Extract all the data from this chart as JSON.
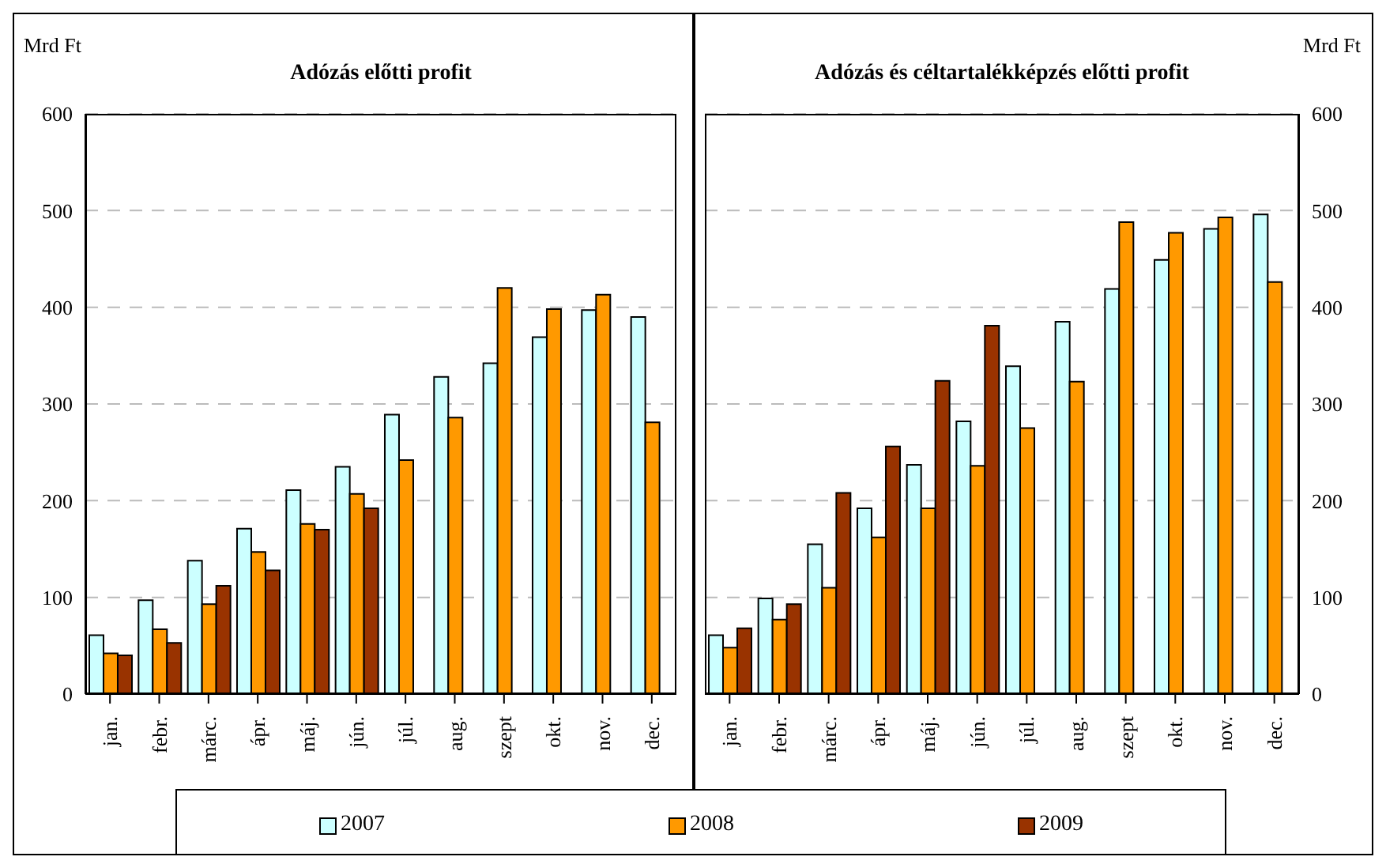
{
  "chart_data": [
    {
      "type": "bar",
      "title": "Adózás előtti profit",
      "ylabel": "Mrd Ft",
      "categories": [
        "jan.",
        "febr.",
        "márc.",
        "ápr.",
        "máj.",
        "jún.",
        "júl.",
        "aug.",
        "szept",
        "okt.",
        "nov.",
        "dec."
      ],
      "series": [
        {
          "name": "2007",
          "color": "#ccffff",
          "values": [
            61,
            97,
            138,
            171,
            211,
            235,
            289,
            328,
            342,
            369,
            397,
            390
          ]
        },
        {
          "name": "2008",
          "color": "#ff9900",
          "values": [
            42,
            67,
            93,
            147,
            176,
            207,
            242,
            286,
            420,
            398,
            413,
            281
          ]
        },
        {
          "name": "2009",
          "color": "#993300",
          "values": [
            40,
            53,
            112,
            128,
            170,
            192,
            null,
            null,
            null,
            null,
            null,
            null
          ]
        }
      ],
      "ylim": [
        0,
        600
      ],
      "yticks": [
        0,
        100,
        200,
        300,
        400,
        500,
        600
      ],
      "grid": "y",
      "legend": "bottom"
    },
    {
      "type": "bar",
      "title": "Adózás és céltartalékképzés előtti profit",
      "ylabel": "Mrd Ft",
      "categories": [
        "jan.",
        "febr.",
        "márc.",
        "ápr.",
        "máj.",
        "jún.",
        "júl.",
        "aug.",
        "szept",
        "okt.",
        "nov.",
        "dec."
      ],
      "series": [
        {
          "name": "2007",
          "color": "#ccffff",
          "values": [
            61,
            99,
            155,
            192,
            237,
            282,
            339,
            385,
            419,
            449,
            481,
            496
          ]
        },
        {
          "name": "2008",
          "color": "#ff9900",
          "values": [
            48,
            77,
            110,
            162,
            192,
            236,
            275,
            323,
            488,
            477,
            493,
            426
          ]
        },
        {
          "name": "2009",
          "color": "#993300",
          "values": [
            68,
            93,
            208,
            256,
            324,
            381,
            null,
            null,
            null,
            null,
            null,
            null
          ]
        }
      ],
      "ylim": [
        0,
        600
      ],
      "yticks": [
        0,
        100,
        200,
        300,
        400,
        500,
        600
      ],
      "grid": "y",
      "legend": "bottom"
    }
  ]
}
